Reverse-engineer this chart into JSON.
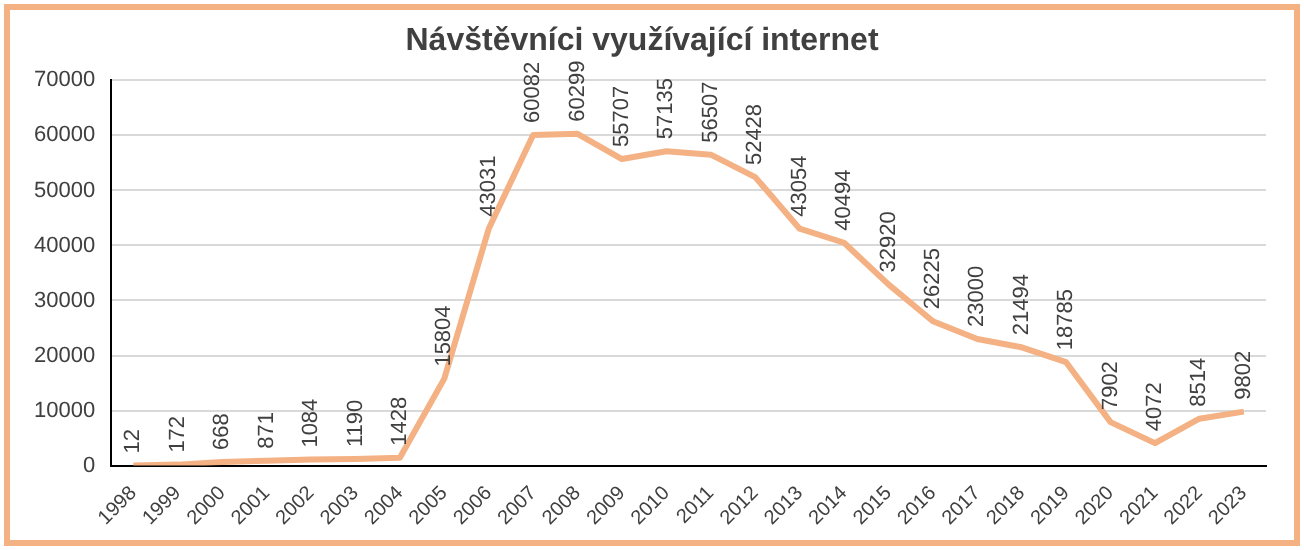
{
  "chart_data": {
    "type": "line",
    "title": "Návštěvníci využívající internet",
    "categories": [
      "1998",
      "1999",
      "2000",
      "2001",
      "2002",
      "2003",
      "2004",
      "2005",
      "2006",
      "2007",
      "2008",
      "2009",
      "2010",
      "2011",
      "2012",
      "2013",
      "2014",
      "2015",
      "2016",
      "2017",
      "2018",
      "2019",
      "2020",
      "2021",
      "2022",
      "2023"
    ],
    "series": [
      {
        "color": "#f4b183",
        "values": [
          12,
          172,
          668,
          871,
          1084,
          1190,
          1428,
          15804,
          43031,
          60082,
          60299,
          55707,
          57135,
          56507,
          52428,
          43054,
          40494,
          32920,
          26225,
          23000,
          21494,
          18785,
          7902,
          4072,
          8514,
          9802
        ]
      }
    ],
    "ylim": [
      0,
      70000
    ],
    "yticks": [
      0,
      10000,
      20000,
      30000,
      40000,
      50000,
      60000,
      70000
    ],
    "grid": "y",
    "legend": false,
    "marker": "none",
    "line_style": "solid",
    "data_labels": true
  }
}
